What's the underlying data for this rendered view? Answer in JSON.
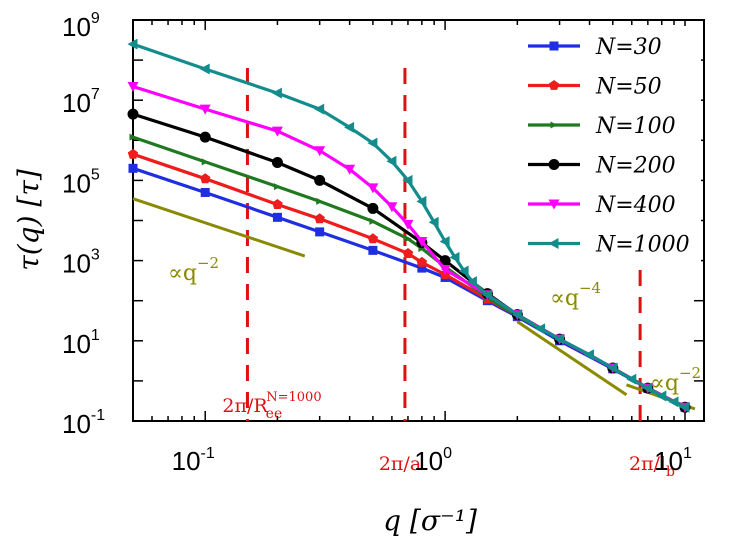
{
  "chart_data": {
    "type": "line",
    "xscale": "log",
    "yscale": "log",
    "xlim": [
      0.05,
      12
    ],
    "ylim": [
      0.1,
      1000000000
    ],
    "xlabel": "q [σ⁻¹]",
    "ylabel": "τ(q) [τ]",
    "legend_position": "top-right",
    "x_ticks": [
      {
        "base": "10",
        "exp": "-1",
        "value": 0.1
      },
      {
        "base": "10",
        "exp": "0",
        "value": 1
      },
      {
        "base": "10",
        "exp": "1",
        "value": 10
      }
    ],
    "y_ticks": [
      {
        "base": "10",
        "exp": "-1",
        "value": 0.1
      },
      {
        "base": "10",
        "exp": "1",
        "value": 10
      },
      {
        "base": "10",
        "exp": "3",
        "value": 1000
      },
      {
        "base": "10",
        "exp": "5",
        "value": 100000
      },
      {
        "base": "10",
        "exp": "7",
        "value": 10000000
      },
      {
        "base": "10",
        "exp": "9",
        "value": 1000000000
      }
    ],
    "series": [
      {
        "name": "N=30",
        "color": "#1f2ee0",
        "marker": "square",
        "x": [
          0.05,
          0.1,
          0.2,
          0.3,
          0.5,
          0.8,
          1.0,
          1.5,
          2.0,
          3.0,
          5.0,
          7.0,
          10.0
        ],
        "y": [
          200000,
          50000,
          12000,
          5200,
          1800,
          650,
          380,
          100,
          40,
          10,
          2,
          0.65,
          0.22
        ]
      },
      {
        "name": "N=50",
        "color": "#ee1c1c",
        "marker": "pentagon",
        "x": [
          0.05,
          0.1,
          0.2,
          0.3,
          0.5,
          0.7,
          0.8,
          1.0,
          1.5,
          2.0,
          3.0,
          5.0,
          7.0,
          10.0
        ],
        "y": [
          450000,
          110000,
          25000,
          11000,
          3500,
          1500,
          900,
          450,
          110,
          42,
          11,
          2.1,
          0.66,
          0.22
        ]
      },
      {
        "name": "N=100",
        "color": "#1f7a1f",
        "marker": "tri-right",
        "x": [
          0.05,
          0.1,
          0.2,
          0.3,
          0.5,
          0.7,
          0.8,
          1.0,
          1.5,
          2.0,
          3.0,
          5.0,
          7.0,
          10.0
        ],
        "y": [
          1200000,
          290000,
          70000,
          30000,
          9500,
          3500,
          2000,
          700,
          120,
          42,
          11,
          2.1,
          0.66,
          0.22
        ]
      },
      {
        "name": "N=200",
        "color": "#000000",
        "marker": "circle",
        "x": [
          0.05,
          0.1,
          0.2,
          0.3,
          0.5,
          0.8,
          1.0,
          1.5,
          2.0,
          3.0,
          5.0,
          7.0,
          10.0
        ],
        "y": [
          4500000,
          1200000,
          280000,
          100000,
          20000,
          2800,
          1000,
          150,
          45,
          11,
          2.1,
          0.66,
          0.22
        ]
      },
      {
        "name": "N=400",
        "color": "#ff00ff",
        "marker": "tri-down",
        "x": [
          0.05,
          0.1,
          0.2,
          0.3,
          0.4,
          0.5,
          0.6,
          0.7,
          0.8,
          1.0,
          1.5,
          2.0,
          3.0,
          5.0,
          7.0,
          10.0
        ],
        "y": [
          22000000,
          6000000,
          1700000,
          550000,
          190000,
          65000,
          22000,
          8000,
          3000,
          600,
          140,
          45,
          11,
          2.1,
          0.66,
          0.22
        ]
      },
      {
        "name": "N=1000",
        "color": "#138c8c",
        "marker": "tri-left",
        "x": [
          0.05,
          0.1,
          0.2,
          0.3,
          0.4,
          0.5,
          0.6,
          0.7,
          0.8,
          0.9,
          1.0,
          1.1,
          1.2,
          1.3,
          1.5,
          2.0,
          2.5,
          3.0,
          4.0,
          5.0,
          6.0,
          7.0,
          8.0,
          9.0,
          10.0
        ],
        "y": [
          250000000,
          60000000,
          15000000,
          6000000,
          2100000,
          850000,
          300000,
          100000,
          30000,
          9000,
          3000,
          1200,
          550,
          300,
          140,
          45,
          20,
          11,
          4.5,
          2.1,
          1.1,
          0.66,
          0.42,
          0.3,
          0.22
        ]
      }
    ],
    "guide_lines": [
      {
        "label": "∝q",
        "exp": "−2",
        "x": [
          0.05,
          0.26
        ],
        "y": [
          35000,
          1300
        ]
      },
      {
        "label": "∝q",
        "exp": "−4",
        "x": [
          2.0,
          5.7
        ],
        "y": [
          30,
          0.45
        ]
      },
      {
        "label": "∝q",
        "exp": "−2",
        "x": [
          5.7,
          11.0
        ],
        "y": [
          0.8,
          0.2
        ]
      }
    ],
    "vlines": [
      {
        "x": 0.15,
        "label": "2π/R",
        "sub": "ee",
        "sup": "N=1000"
      },
      {
        "x": 0.68,
        "label": "2π/a",
        "sub": "",
        "sup": ""
      },
      {
        "x": 6.5,
        "label": "2π/l",
        "sub": "b",
        "sup": ""
      }
    ]
  }
}
